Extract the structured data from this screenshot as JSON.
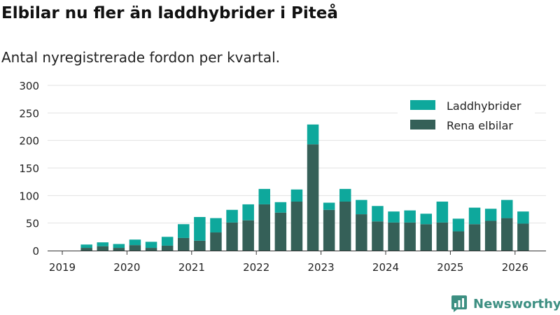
{
  "chart_data": {
    "type": "bar",
    "stacked": true,
    "title": "Elbilar nu fler än laddhybrider i Piteå",
    "subtitle": "Antal nyregistrerade fordon per kvartal.",
    "xlabel": "",
    "ylabel": "",
    "ylim": [
      0,
      300
    ],
    "yticks": [
      "0",
      "50",
      "100",
      "150",
      "200",
      "250",
      "300"
    ],
    "xticks": [
      "2019",
      "2020",
      "2021",
      "2022",
      "2023",
      "2024",
      "2025",
      "2026"
    ],
    "legend_position": "top-right",
    "categories": [
      "2019 Q2",
      "2019 Q3",
      "2019 Q4",
      "2020 Q1",
      "2020 Q2",
      "2020 Q3",
      "2020 Q4",
      "2021 Q1",
      "2021 Q2",
      "2021 Q3",
      "2021 Q4",
      "2022 Q1",
      "2022 Q2",
      "2022 Q3",
      "2022 Q4",
      "2023 Q1",
      "2023 Q2",
      "2023 Q3",
      "2023 Q4",
      "2024 Q1",
      "2024 Q2",
      "2024 Q3",
      "2024 Q4",
      "2025 Q1",
      "2025 Q2",
      "2025 Q3",
      "2025 Q4",
      "2026 Q1"
    ],
    "series": [
      {
        "name": "Rena elbilar",
        "color": "#356058",
        "values": [
          5,
          8,
          5,
          10,
          5,
          9,
          23,
          18,
          33,
          51,
          55,
          84,
          69,
          89,
          193,
          74,
          89,
          66,
          53,
          51,
          51,
          48,
          51,
          35,
          48,
          54,
          59,
          49
        ]
      },
      {
        "name": "Laddhybrider",
        "color": "#0ea89c",
        "values": [
          6,
          7,
          7,
          10,
          11,
          16,
          25,
          43,
          26,
          23,
          29,
          28,
          19,
          22,
          36,
          13,
          23,
          26,
          28,
          20,
          22,
          19,
          38,
          23,
          30,
          22,
          33,
          22
        ]
      }
    ]
  },
  "brand": {
    "name": "Newsworthy",
    "color": "#3d8f82",
    "icon": "newsworthy-logo-icon"
  }
}
